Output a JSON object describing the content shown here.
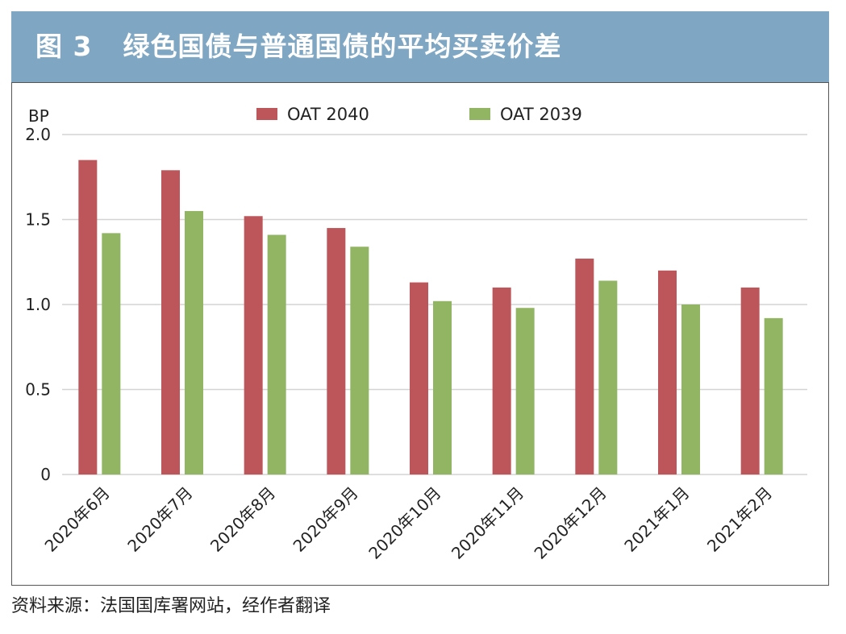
{
  "header": {
    "figure_label": "图 3",
    "title": "绿色国债与普通国债的平均买卖价差"
  },
  "source": "资料来源：法国国库署网站，经作者翻译",
  "colors": {
    "header_bg": "#7fa7c3",
    "series_1": "#bd565a",
    "series_2": "#92b564",
    "grid": "#d4d4d4"
  },
  "chart_data": {
    "type": "bar",
    "title": "绿色国债与普通国债的平均买卖价差",
    "ylabel": "BP",
    "xlabel": "",
    "ylim": [
      0,
      2.0
    ],
    "yticks": [
      {
        "value": 0,
        "label": "0"
      },
      {
        "value": 0.5,
        "label": "0.5"
      },
      {
        "value": 1.0,
        "label": "1.0"
      },
      {
        "value": 1.5,
        "label": "1.5"
      },
      {
        "value": 2.0,
        "label": "2.0"
      }
    ],
    "grid": true,
    "legend_position": "top-center",
    "categories": [
      "2020年6月",
      "2020年7月",
      "2020年8月",
      "2020年9月",
      "2020年10月",
      "2020年11月",
      "2020年12月",
      "2021年1月",
      "2021年2月"
    ],
    "series": [
      {
        "name": "OAT 2040",
        "values": [
          1.85,
          1.79,
          1.52,
          1.45,
          1.13,
          1.1,
          1.27,
          1.2,
          1.1
        ]
      },
      {
        "name": "OAT 2039",
        "values": [
          1.42,
          1.55,
          1.41,
          1.34,
          1.02,
          0.98,
          1.14,
          1.0,
          0.92
        ]
      }
    ]
  }
}
